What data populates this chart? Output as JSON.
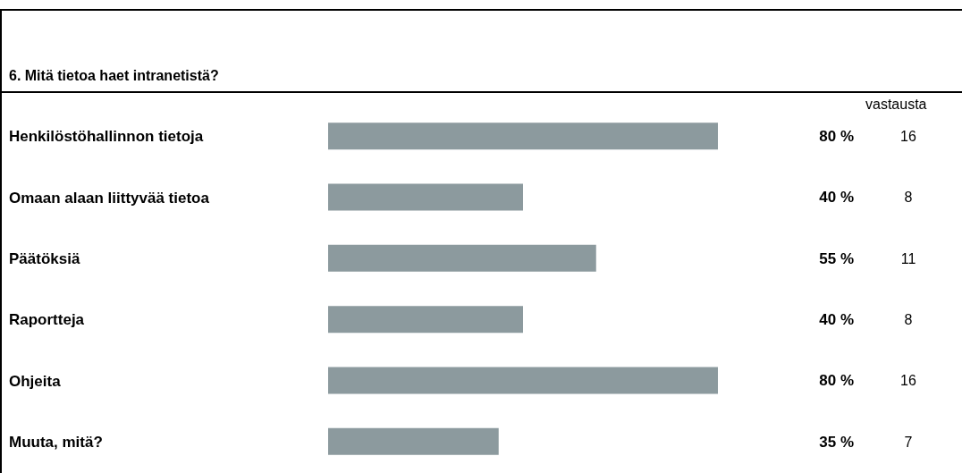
{
  "chart_data": {
    "type": "bar",
    "orientation": "horizontal",
    "title": "6. Mitä tietoa haet intranetistä?",
    "categories": [
      "Henkilöstöhallinnon tietoja",
      "Omaan alaan liittyvää tietoa",
      "Päätöksiä",
      "Raportteja",
      "Ohjeita",
      "Muuta, mitä?"
    ],
    "values": [
      80,
      40,
      55,
      40,
      80,
      35
    ],
    "value_labels": [
      "80 %",
      "40 %",
      "55 %",
      "40 %",
      "80 %",
      "35 %"
    ],
    "color": "#8c9a9e",
    "annotations": [
      "vastausta",
      "16",
      "8",
      "11",
      "8",
      "16",
      "7"
    ]
  }
}
